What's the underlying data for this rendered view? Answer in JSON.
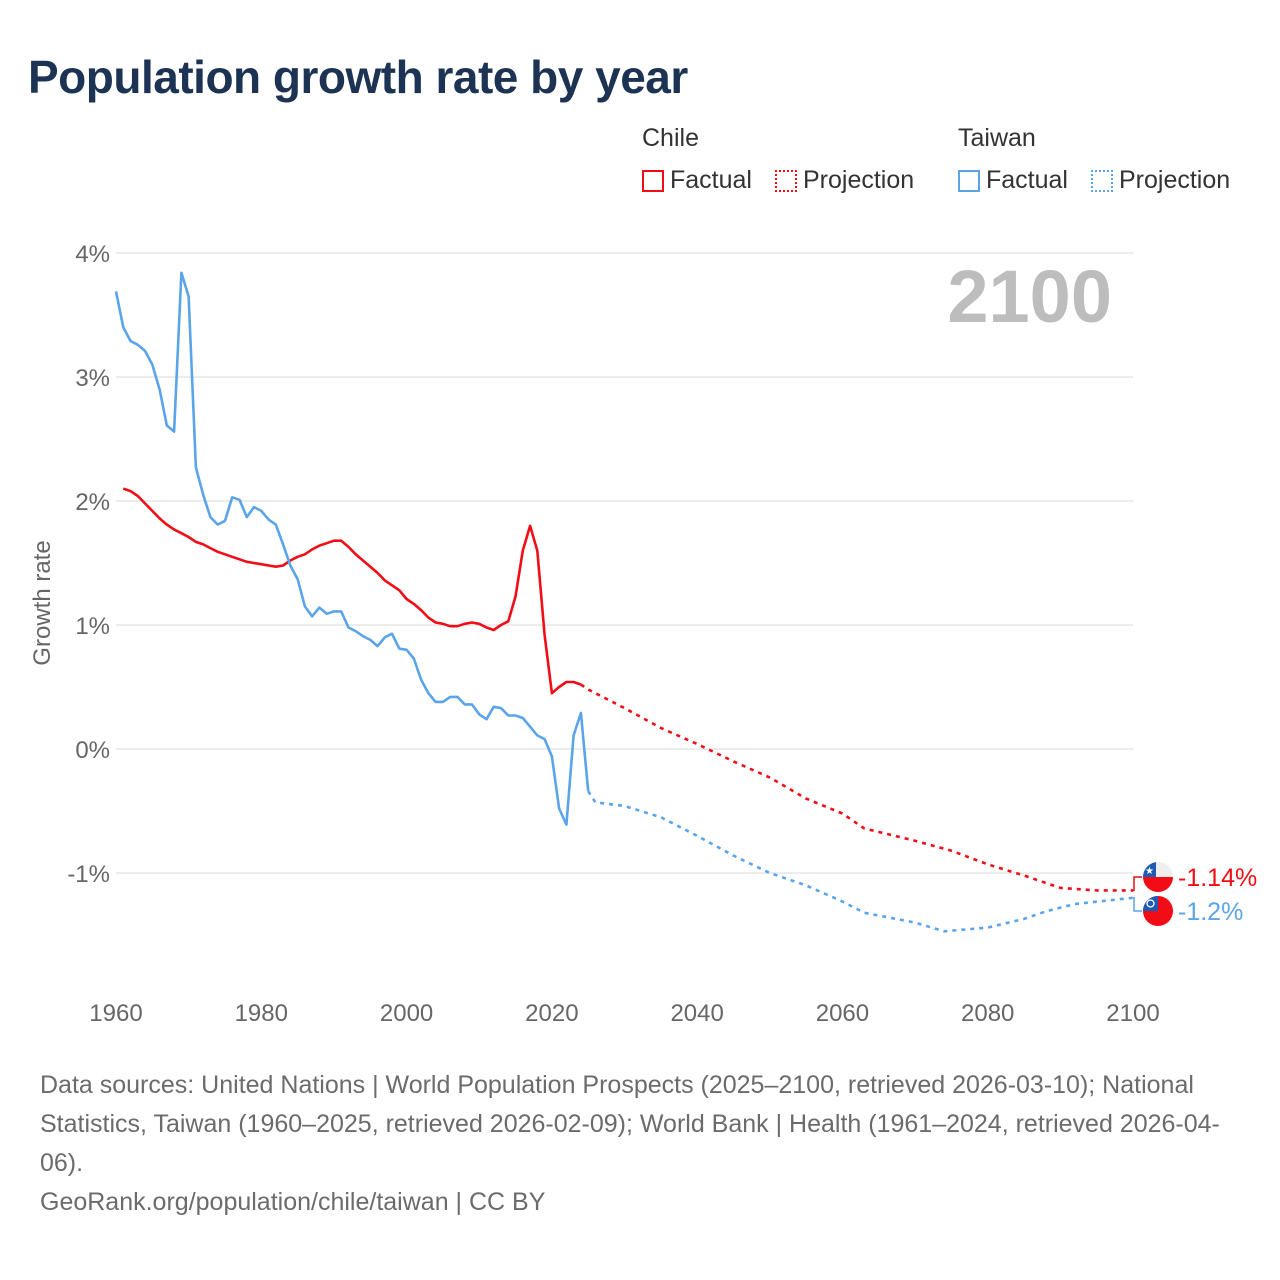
{
  "title": "Population growth rate by year",
  "legend": {
    "groups": [
      {
        "name": "Chile",
        "color": "#f20d16",
        "factual": "Factual",
        "projection": "Projection"
      },
      {
        "name": "Taiwan",
        "color": "#5aa4ea",
        "factual": "Factual",
        "projection": "Projection"
      }
    ]
  },
  "chart_data": {
    "type": "line",
    "title": "Population growth rate by year",
    "xlabel": "",
    "ylabel": "Growth rate",
    "xlim": [
      1960,
      2100
    ],
    "ylim": [
      -1.9,
      4.0
    ],
    "x_ticks": [
      "1960",
      "1980",
      "2000",
      "2020",
      "2040",
      "2060",
      "2080",
      "2100"
    ],
    "y_ticks": [
      {
        "v": 4,
        "label": "4%"
      },
      {
        "v": 3,
        "label": "3%"
      },
      {
        "v": 2,
        "label": "2%"
      },
      {
        "v": 1,
        "label": "1%"
      },
      {
        "v": 0,
        "label": "0%"
      },
      {
        "v": -1,
        "label": "-1%"
      }
    ],
    "grid": true,
    "year_watermark": "2100",
    "series": [
      {
        "name": "Chile",
        "color": "#f20d16",
        "end_label": "-1.14%",
        "factual": [
          [
            1961,
            2.1
          ],
          [
            1962,
            2.08
          ],
          [
            1963,
            2.04
          ],
          [
            1964,
            1.98
          ],
          [
            1965,
            1.92
          ],
          [
            1966,
            1.86
          ],
          [
            1967,
            1.81
          ],
          [
            1968,
            1.77
          ],
          [
            1969,
            1.74
          ],
          [
            1970,
            1.71
          ],
          [
            1971,
            1.67
          ],
          [
            1972,
            1.65
          ],
          [
            1973,
            1.62
          ],
          [
            1974,
            1.59
          ],
          [
            1975,
            1.57
          ],
          [
            1976,
            1.55
          ],
          [
            1977,
            1.53
          ],
          [
            1978,
            1.51
          ],
          [
            1979,
            1.5
          ],
          [
            1980,
            1.49
          ],
          [
            1981,
            1.48
          ],
          [
            1982,
            1.47
          ],
          [
            1983,
            1.48
          ],
          [
            1984,
            1.52
          ],
          [
            1985,
            1.55
          ],
          [
            1986,
            1.57
          ],
          [
            1987,
            1.61
          ],
          [
            1988,
            1.64
          ],
          [
            1989,
            1.66
          ],
          [
            1990,
            1.68
          ],
          [
            1991,
            1.68
          ],
          [
            1992,
            1.63
          ],
          [
            1993,
            1.57
          ],
          [
            1994,
            1.52
          ],
          [
            1995,
            1.47
          ],
          [
            1996,
            1.42
          ],
          [
            1997,
            1.36
          ],
          [
            1998,
            1.32
          ],
          [
            1999,
            1.28
          ],
          [
            2000,
            1.21
          ],
          [
            2001,
            1.17
          ],
          [
            2002,
            1.12
          ],
          [
            2003,
            1.06
          ],
          [
            2004,
            1.02
          ],
          [
            2005,
            1.01
          ],
          [
            2006,
            0.99
          ],
          [
            2007,
            0.99
          ],
          [
            2008,
            1.01
          ],
          [
            2009,
            1.02
          ],
          [
            2010,
            1.01
          ],
          [
            2011,
            0.98
          ],
          [
            2012,
            0.96
          ],
          [
            2013,
            1.0
          ],
          [
            2014,
            1.03
          ],
          [
            2015,
            1.23
          ],
          [
            2016,
            1.6
          ],
          [
            2017,
            1.8
          ],
          [
            2018,
            1.6
          ],
          [
            2019,
            0.92
          ],
          [
            2020,
            0.45
          ],
          [
            2021,
            0.5
          ],
          [
            2022,
            0.54
          ],
          [
            2023,
            0.54
          ],
          [
            2024,
            0.52
          ]
        ],
        "projection": [
          [
            2024,
            0.52
          ],
          [
            2025,
            0.48
          ],
          [
            2030,
            0.33
          ],
          [
            2035,
            0.17
          ],
          [
            2040,
            0.04
          ],
          [
            2045,
            -0.1
          ],
          [
            2050,
            -0.23
          ],
          [
            2055,
            -0.4
          ],
          [
            2060,
            -0.52
          ],
          [
            2063,
            -0.64
          ],
          [
            2070,
            -0.74
          ],
          [
            2075,
            -0.82
          ],
          [
            2080,
            -0.93
          ],
          [
            2085,
            -1.02
          ],
          [
            2090,
            -1.12
          ],
          [
            2095,
            -1.14
          ],
          [
            2100,
            -1.14
          ]
        ]
      },
      {
        "name": "Taiwan",
        "color": "#5aa4ea",
        "end_label": "-1.2%",
        "factual": [
          [
            1960,
            3.69
          ],
          [
            1961,
            3.4
          ],
          [
            1962,
            3.29
          ],
          [
            1963,
            3.26
          ],
          [
            1964,
            3.21
          ],
          [
            1965,
            3.1
          ],
          [
            1966,
            2.9
          ],
          [
            1967,
            2.61
          ],
          [
            1968,
            2.56
          ],
          [
            1969,
            3.84
          ],
          [
            1970,
            3.65
          ],
          [
            1971,
            2.27
          ],
          [
            1972,
            2.05
          ],
          [
            1973,
            1.87
          ],
          [
            1974,
            1.81
          ],
          [
            1975,
            1.84
          ],
          [
            1976,
            2.03
          ],
          [
            1977,
            2.01
          ],
          [
            1978,
            1.87
          ],
          [
            1979,
            1.95
          ],
          [
            1980,
            1.92
          ],
          [
            1981,
            1.85
          ],
          [
            1982,
            1.81
          ],
          [
            1983,
            1.65
          ],
          [
            1984,
            1.48
          ],
          [
            1985,
            1.37
          ],
          [
            1986,
            1.15
          ],
          [
            1987,
            1.07
          ],
          [
            1988,
            1.14
          ],
          [
            1989,
            1.09
          ],
          [
            1990,
            1.11
          ],
          [
            1991,
            1.11
          ],
          [
            1992,
            0.98
          ],
          [
            1993,
            0.95
          ],
          [
            1994,
            0.91
          ],
          [
            1995,
            0.88
          ],
          [
            1996,
            0.83
          ],
          [
            1997,
            0.9
          ],
          [
            1998,
            0.93
          ],
          [
            1999,
            0.81
          ],
          [
            2000,
            0.8
          ],
          [
            2001,
            0.73
          ],
          [
            2002,
            0.56
          ],
          [
            2003,
            0.45
          ],
          [
            2004,
            0.38
          ],
          [
            2005,
            0.38
          ],
          [
            2006,
            0.42
          ],
          [
            2007,
            0.42
          ],
          [
            2008,
            0.36
          ],
          [
            2009,
            0.36
          ],
          [
            2010,
            0.28
          ],
          [
            2011,
            0.24
          ],
          [
            2012,
            0.34
          ],
          [
            2013,
            0.33
          ],
          [
            2014,
            0.27
          ],
          [
            2015,
            0.27
          ],
          [
            2016,
            0.25
          ],
          [
            2017,
            0.18
          ],
          [
            2018,
            0.11
          ],
          [
            2019,
            0.08
          ],
          [
            2020,
            -0.06
          ],
          [
            2021,
            -0.48
          ],
          [
            2022,
            -0.61
          ],
          [
            2023,
            0.11
          ],
          [
            2024,
            0.29
          ],
          [
            2025,
            -0.34
          ]
        ],
        "projection": [
          [
            2025,
            -0.34
          ],
          [
            2026,
            -0.43
          ],
          [
            2030,
            -0.46
          ],
          [
            2035,
            -0.55
          ],
          [
            2040,
            -0.7
          ],
          [
            2045,
            -0.86
          ],
          [
            2050,
            -1.0
          ],
          [
            2055,
            -1.1
          ],
          [
            2060,
            -1.23
          ],
          [
            2063,
            -1.32
          ],
          [
            2070,
            -1.4
          ],
          [
            2074,
            -1.47
          ],
          [
            2080,
            -1.44
          ],
          [
            2085,
            -1.37
          ],
          [
            2088,
            -1.31
          ],
          [
            2092,
            -1.25
          ],
          [
            2100,
            -1.2
          ]
        ]
      }
    ]
  },
  "footer": {
    "sources": "Data sources: United Nations | World Population Prospects (2025–2100, retrieved 2026-03-10); National Statistics, Taiwan (1960–2025, retrieved 2026-02-09); World Bank | Health (1961–2024, retrieved 2026-04-06).",
    "credit": "GeoRank.org/population/chile/taiwan | CC BY"
  }
}
